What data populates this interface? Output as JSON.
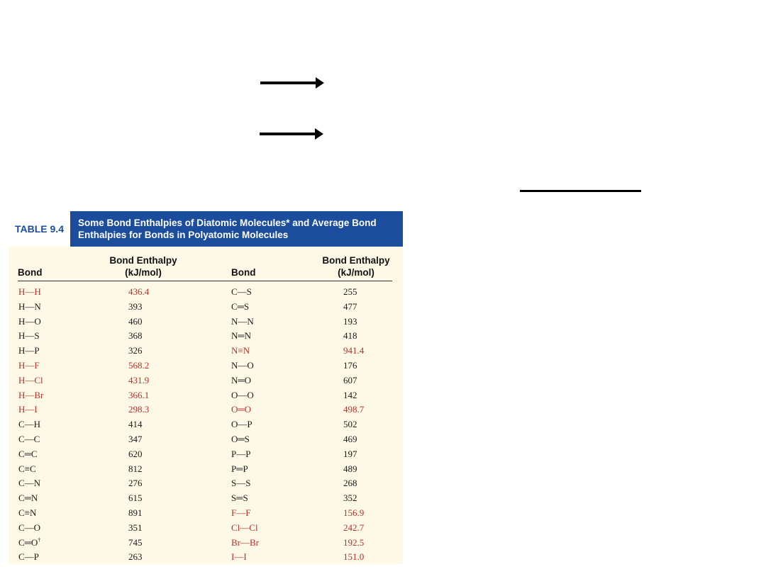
{
  "table": {
    "badge": "TABLE 9.4",
    "title_line1": "Some Bond Enthalpies of Diatomic Molecules* and Average Bond",
    "title_line2": "Enthalpies for Bonds in Polyatomic Molecules",
    "headers": {
      "bond": "Bond",
      "enthalpy_line1": "Bond Enthalpy",
      "enthalpy_line2": "(kJ/mol)"
    },
    "rows": [
      {
        "b1": "H—H",
        "v1": "436.4",
        "r1": true,
        "b2": "C—S",
        "v2": "255",
        "r2": false
      },
      {
        "b1": "H—N",
        "v1": "393",
        "r1": false,
        "b2": "C═S",
        "v2": "477",
        "r2": false
      },
      {
        "b1": "H—O",
        "v1": "460",
        "r1": false,
        "b2": "N—N",
        "v2": "193",
        "r2": false
      },
      {
        "b1": "H—S",
        "v1": "368",
        "r1": false,
        "b2": "N═N",
        "v2": "418",
        "r2": false
      },
      {
        "b1": "H—P",
        "v1": "326",
        "r1": false,
        "b2": "N≡N",
        "v2": "941.4",
        "r2": true
      },
      {
        "b1": "H—F",
        "v1": "568.2",
        "r1": true,
        "b2": "N—O",
        "v2": "176",
        "r2": false
      },
      {
        "b1": "H—Cl",
        "v1": "431.9",
        "r1": true,
        "b2": "N═O",
        "v2": "607",
        "r2": false
      },
      {
        "b1": "H—Br",
        "v1": "366.1",
        "r1": true,
        "b2": "O—O",
        "v2": "142",
        "r2": false
      },
      {
        "b1": "H—I",
        "v1": "298.3",
        "r1": true,
        "b2": "O═O",
        "v2": "498.7",
        "r2": true
      },
      {
        "b1": "C—H",
        "v1": "414",
        "r1": false,
        "b2": "O—P",
        "v2": "502",
        "r2": false
      },
      {
        "b1": "C—C",
        "v1": "347",
        "r1": false,
        "b2": "O═S",
        "v2": "469",
        "r2": false
      },
      {
        "b1": "C═C",
        "v1": "620",
        "r1": false,
        "b2": "P—P",
        "v2": "197",
        "r2": false
      },
      {
        "b1": "C≡C",
        "v1": "812",
        "r1": false,
        "b2": "P═P",
        "v2": "489",
        "r2": false
      },
      {
        "b1": "C—N",
        "v1": "276",
        "r1": false,
        "b2": "S—S",
        "v2": "268",
        "r2": false
      },
      {
        "b1": "C═N",
        "v1": "615",
        "r1": false,
        "b2": "S═S",
        "v2": "352",
        "r2": false
      },
      {
        "b1": "C≡N",
        "v1": "891",
        "r1": false,
        "b2": "F—F",
        "v2": "156.9",
        "r2": true
      },
      {
        "b1": "C—O",
        "v1": "351",
        "r1": false,
        "b2": "Cl—Cl",
        "v2": "242.7",
        "r2": true
      },
      {
        "b1": "C═O",
        "sup1": "†",
        "v1": "745",
        "r1": false,
        "b2": "Br—Br",
        "v2": "192.5",
        "r2": true
      },
      {
        "b1": "C—P",
        "v1": "263",
        "r1": false,
        "b2": "I—I",
        "v2": "151.0",
        "r2": true
      }
    ]
  }
}
